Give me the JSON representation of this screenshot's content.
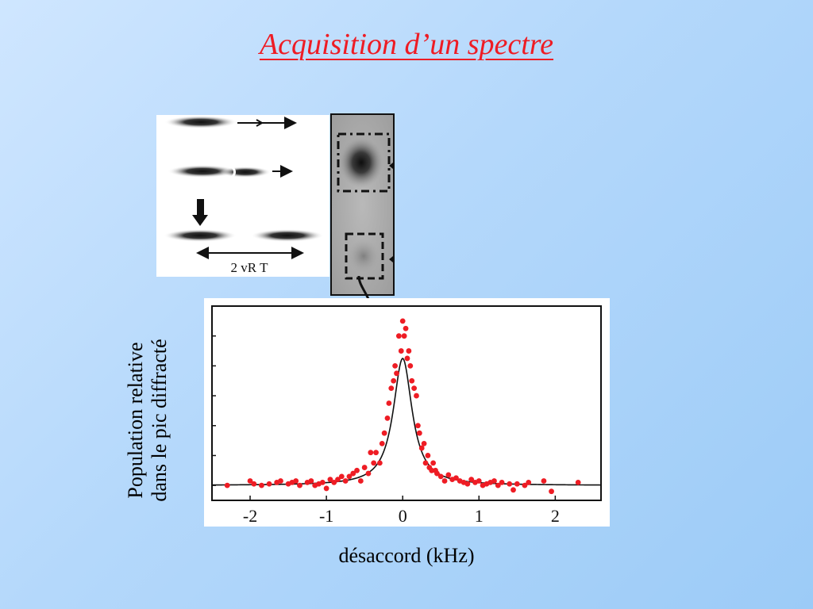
{
  "slide": {
    "title": "Acquisition d’un spectre"
  },
  "schematic": {
    "distance_label": "2 vR T"
  },
  "chart_data": {
    "type": "scatter",
    "xlabel": "désaccord (kHz)",
    "ylabel_lines": [
      "Population relative",
      "dans le pic diffracté"
    ],
    "xlim": [
      -2.5,
      2.6
    ],
    "ylim": [
      -0.1,
      1.2
    ],
    "x_ticks": [
      -2,
      -1,
      0,
      1,
      2
    ],
    "x_tick_labels": [
      "-2",
      "-1",
      "0",
      "1",
      "2"
    ],
    "y_ticks": [
      0,
      0.2,
      0.4,
      0.6,
      0.8,
      1.0
    ],
    "grid": false,
    "colors": {
      "points": "#ee1c24",
      "fit": "#111111"
    },
    "fit": {
      "shape": "lorentzian",
      "center": 0.0,
      "hwhm": 0.15,
      "amplitude": 0.85,
      "baseline": 0.0
    },
    "series": [
      {
        "role": "measured",
        "x": [
          -2.3,
          -2.0,
          -1.95,
          -1.85,
          -1.75,
          -1.65,
          -1.6,
          -1.5,
          -1.45,
          -1.4,
          -1.35,
          -1.25,
          -1.2,
          -1.15,
          -1.1,
          -1.05,
          -1.0,
          -0.95,
          -0.9,
          -0.85,
          -0.8,
          -0.75,
          -0.7,
          -0.65,
          -0.6,
          -0.55,
          -0.5,
          -0.45,
          -0.42,
          -0.38,
          -0.35,
          -0.3,
          -0.27,
          -0.24,
          -0.2,
          -0.18,
          -0.15,
          -0.12,
          -0.1,
          -0.08,
          -0.05,
          -0.02,
          0.0,
          0.02,
          0.04,
          0.06,
          0.08,
          0.1,
          0.12,
          0.15,
          0.18,
          0.2,
          0.22,
          0.25,
          0.28,
          0.3,
          0.33,
          0.35,
          0.38,
          0.4,
          0.43,
          0.45,
          0.5,
          0.55,
          0.6,
          0.65,
          0.7,
          0.75,
          0.8,
          0.85,
          0.9,
          0.95,
          1.0,
          1.05,
          1.1,
          1.15,
          1.2,
          1.25,
          1.3,
          1.4,
          1.45,
          1.5,
          1.6,
          1.65,
          1.85,
          1.95,
          2.3
        ],
        "y": [
          0.0,
          0.03,
          0.01,
          0.0,
          0.01,
          0.02,
          0.03,
          0.01,
          0.02,
          0.03,
          0.0,
          0.02,
          0.03,
          0.0,
          0.01,
          0.02,
          -0.02,
          0.04,
          0.02,
          0.04,
          0.06,
          0.03,
          0.06,
          0.08,
          0.1,
          0.03,
          0.12,
          0.08,
          0.22,
          0.15,
          0.22,
          0.15,
          0.28,
          0.35,
          0.45,
          0.55,
          0.65,
          0.7,
          0.8,
          0.75,
          1.0,
          0.9,
          1.1,
          1.0,
          1.05,
          0.85,
          0.9,
          0.8,
          0.7,
          0.65,
          0.6,
          0.4,
          0.35,
          0.25,
          0.28,
          0.15,
          0.2,
          0.12,
          0.1,
          0.15,
          0.1,
          0.08,
          0.06,
          0.03,
          0.07,
          0.04,
          0.05,
          0.03,
          0.02,
          0.01,
          0.04,
          0.02,
          0.03,
          0.0,
          0.01,
          0.02,
          0.03,
          0.0,
          0.02,
          0.01,
          -0.03,
          0.01,
          0.0,
          0.02,
          0.03,
          -0.04,
          0.02
        ]
      }
    ]
  }
}
